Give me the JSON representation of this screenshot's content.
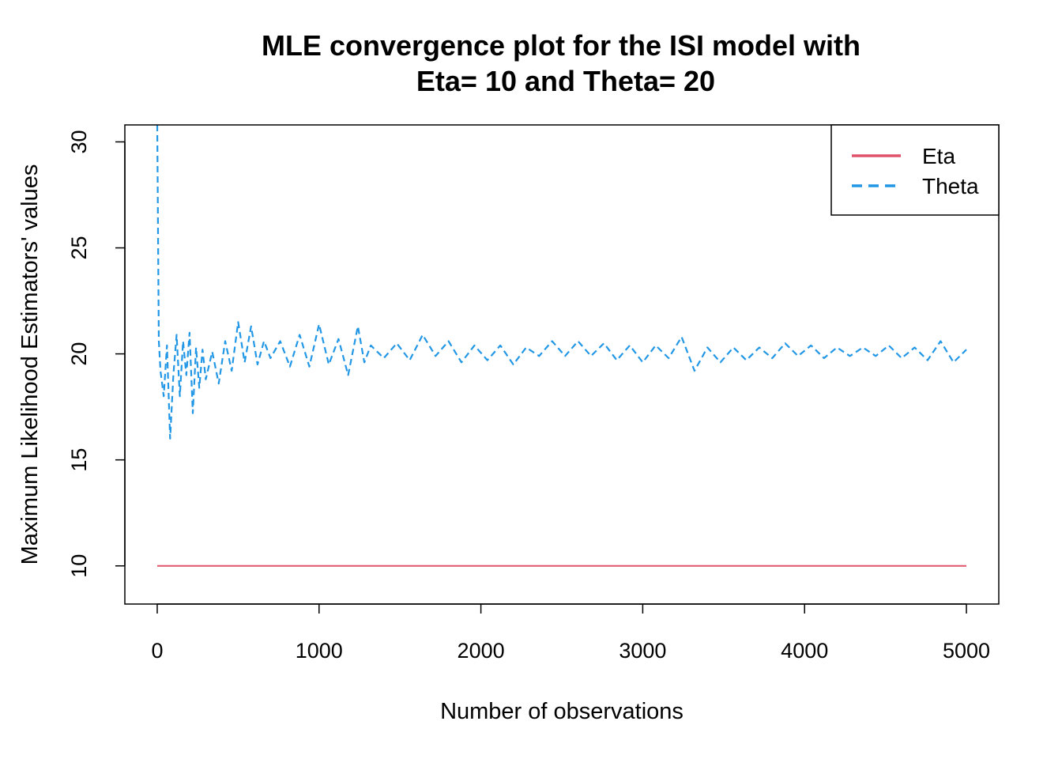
{
  "chart_data": {
    "type": "line",
    "title_line1": "MLE convergence plot for the ISI model with",
    "title_line2": "Eta= 10 and Theta= 20",
    "xlabel": "Number of observations",
    "ylabel": "Maximum Likelihood Estimators' values",
    "xlim": [
      -200,
      5200
    ],
    "ylim": [
      8.2,
      30.8
    ],
    "xticks": [
      0,
      1000,
      2000,
      3000,
      4000,
      5000
    ],
    "yticks": [
      10,
      15,
      20,
      25,
      30
    ],
    "xtick_labels": [
      "0",
      "1000",
      "2000",
      "3000",
      "4000",
      "5000"
    ],
    "ytick_labels": [
      "10",
      "15",
      "20",
      "25",
      "30"
    ],
    "grid": false,
    "legend_position": "top-right",
    "legend": [
      {
        "label": "Eta",
        "color": "#DF536B",
        "style": "solid"
      },
      {
        "label": "Theta",
        "color": "#2297E6",
        "style": "dashed"
      }
    ],
    "series": [
      {
        "name": "Eta",
        "color": "#DF536B",
        "style": "solid",
        "x": [
          0,
          1000,
          2000,
          3000,
          4000,
          5000
        ],
        "y": [
          10,
          10,
          10,
          10,
          10,
          10
        ]
      },
      {
        "name": "Theta",
        "color": "#2297E6",
        "style": "dashed",
        "x": [
          0,
          10,
          20,
          40,
          60,
          80,
          100,
          120,
          140,
          160,
          180,
          200,
          220,
          240,
          260,
          280,
          300,
          340,
          380,
          420,
          460,
          500,
          540,
          580,
          620,
          660,
          700,
          760,
          820,
          880,
          940,
          1000,
          1060,
          1120,
          1180,
          1240,
          1280,
          1320,
          1400,
          1480,
          1560,
          1640,
          1720,
          1800,
          1880,
          1960,
          2040,
          2120,
          2200,
          2280,
          2360,
          2440,
          2520,
          2600,
          2680,
          2760,
          2840,
          2920,
          3000,
          3080,
          3160,
          3240,
          3320,
          3400,
          3480,
          3560,
          3640,
          3720,
          3800,
          3880,
          3960,
          4040,
          4120,
          4200,
          4280,
          4360,
          4440,
          4520,
          4600,
          4680,
          4760,
          4840,
          4920,
          5000
        ],
        "y": [
          30.8,
          20.6,
          19.2,
          18.0,
          20.4,
          16.0,
          19.0,
          20.9,
          18.0,
          20.6,
          19.0,
          21.0,
          17.2,
          20.3,
          18.4,
          20.2,
          18.8,
          20.1,
          18.6,
          20.6,
          19.2,
          21.5,
          19.6,
          21.3,
          19.5,
          20.6,
          19.8,
          20.6,
          19.4,
          20.9,
          19.4,
          21.4,
          19.5,
          20.7,
          19.0,
          21.3,
          19.6,
          20.4,
          19.8,
          20.5,
          19.7,
          20.9,
          19.9,
          20.6,
          19.6,
          20.4,
          19.7,
          20.4,
          19.5,
          20.3,
          19.9,
          20.6,
          19.9,
          20.6,
          19.9,
          20.5,
          19.7,
          20.4,
          19.6,
          20.4,
          19.8,
          20.8,
          19.2,
          20.3,
          19.6,
          20.3,
          19.7,
          20.3,
          19.8,
          20.5,
          19.9,
          20.4,
          19.8,
          20.3,
          19.9,
          20.3,
          19.9,
          20.4,
          19.8,
          20.3,
          19.7,
          20.6,
          19.6,
          20.2
        ]
      }
    ]
  }
}
